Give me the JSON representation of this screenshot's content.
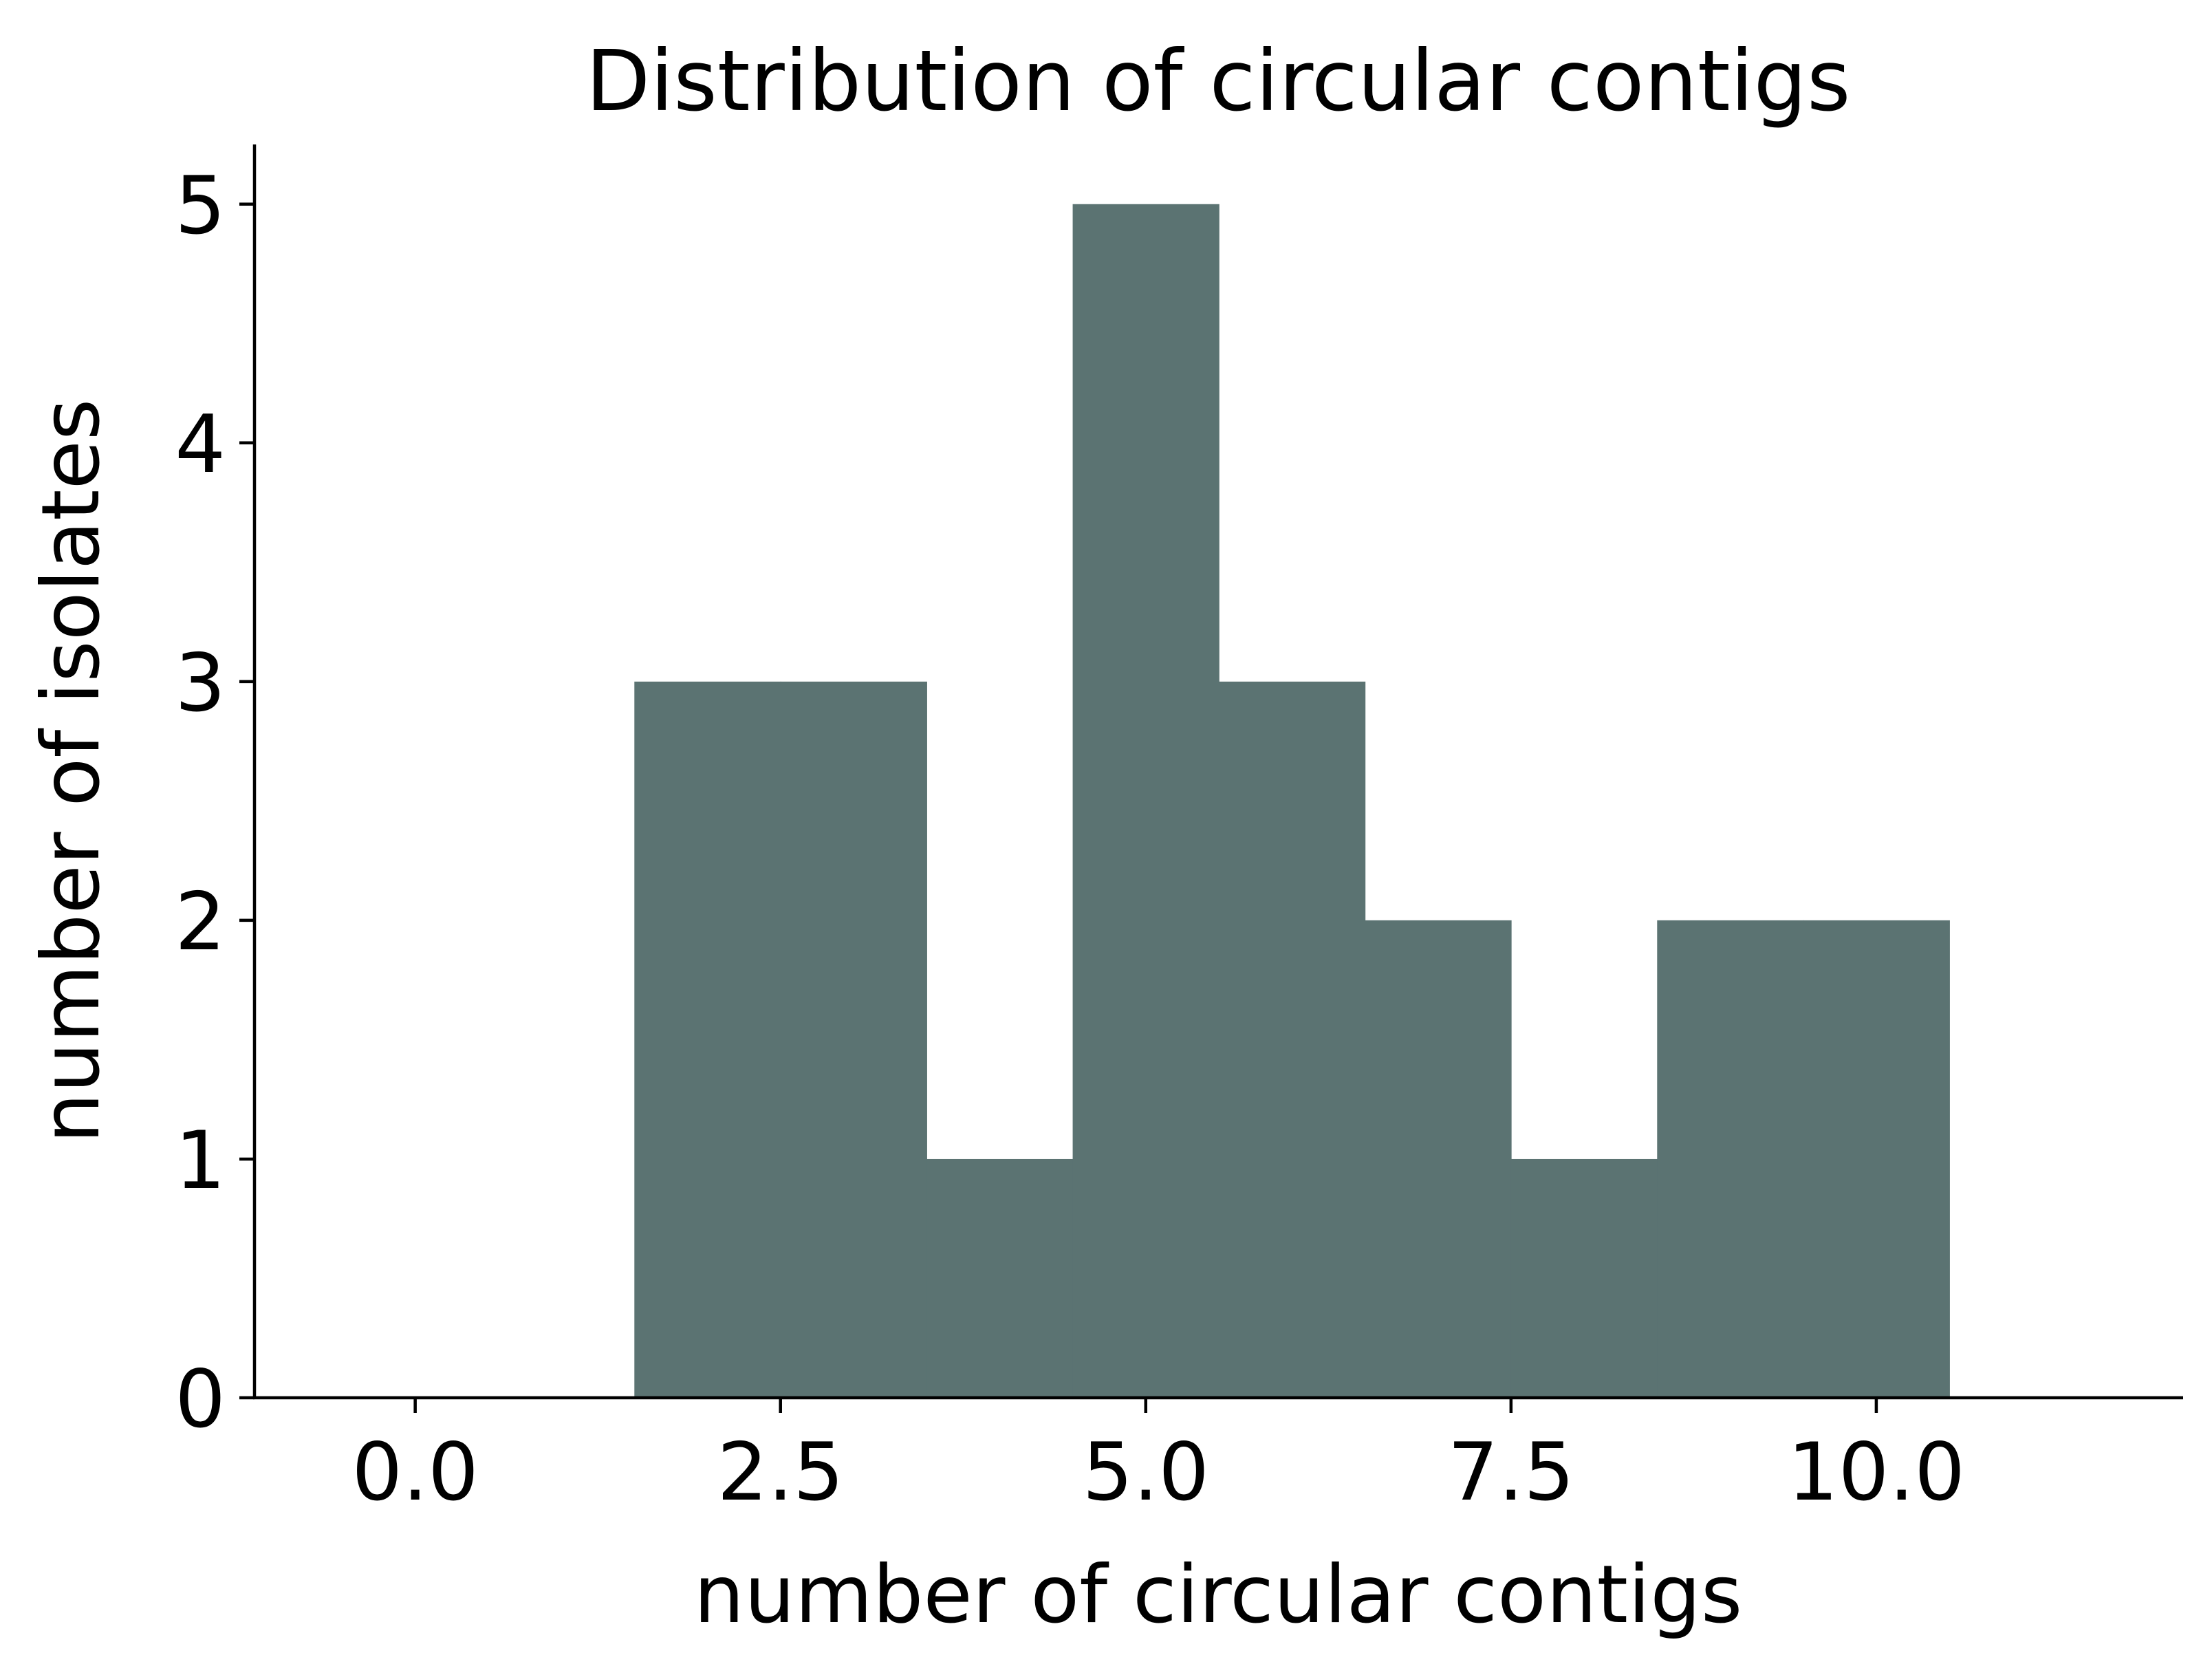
{
  "chart_data": {
    "type": "bar",
    "title": "Distribution of circular contigs",
    "xlabel": "number of circular contigs",
    "ylabel": "number of isolates",
    "bins": [
      {
        "x0": 1.5,
        "x1": 2.5,
        "count": 3
      },
      {
        "x0": 2.5,
        "x1": 3.5,
        "count": 3
      },
      {
        "x0": 3.5,
        "x1": 4.5,
        "count": 1
      },
      {
        "x0": 4.5,
        "x1": 5.5,
        "count": 5
      },
      {
        "x0": 5.5,
        "x1": 6.5,
        "count": 3
      },
      {
        "x0": 6.5,
        "x1": 7.5,
        "count": 2
      },
      {
        "x0": 7.5,
        "x1": 8.5,
        "count": 1
      },
      {
        "x0": 8.5,
        "x1": 9.5,
        "count": 2
      },
      {
        "x0": 9.5,
        "x1": 10.5,
        "count": 2
      }
    ],
    "xlim": [
      -1.1,
      12.1
    ],
    "ylim": [
      0,
      5.25
    ],
    "xticks": [
      0.0,
      2.5,
      5.0,
      7.5,
      10.0
    ],
    "xtick_labels": [
      "0.0",
      "2.5",
      "5.0",
      "7.5",
      "10.0"
    ],
    "yticks": [
      0,
      1,
      2,
      3,
      4,
      5
    ],
    "ytick_labels": [
      "0",
      "1",
      "2",
      "3",
      "4",
      "5"
    ],
    "bar_color": "#5b7372",
    "grid": false,
    "legend": "none"
  }
}
